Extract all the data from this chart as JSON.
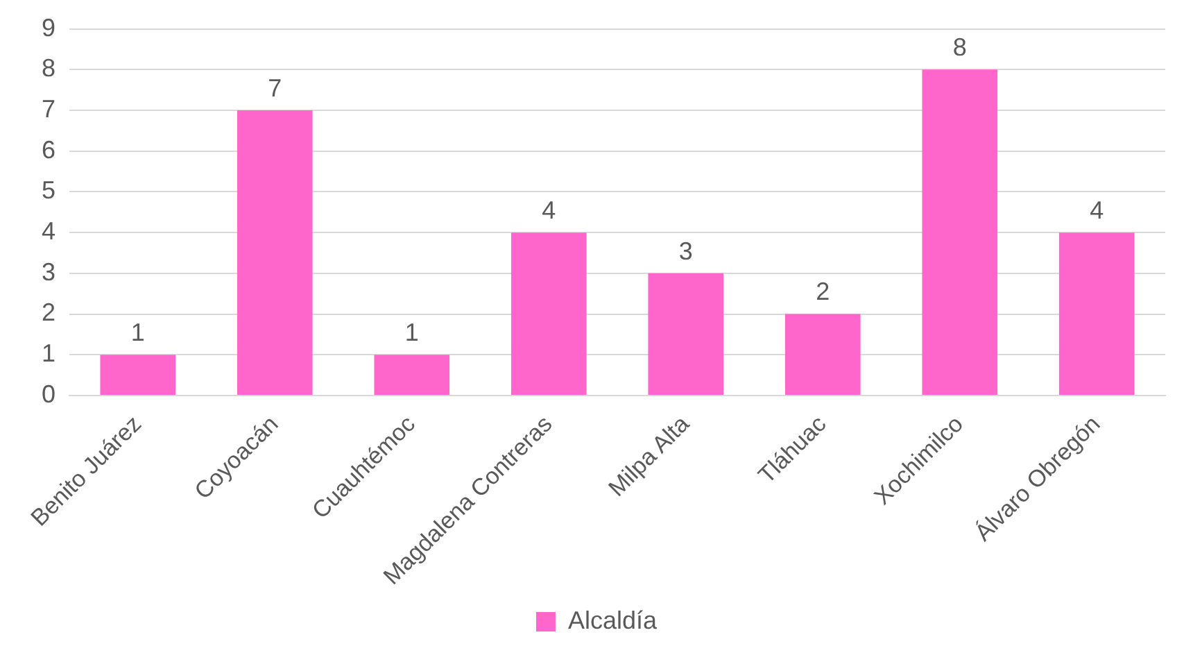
{
  "chart_data": {
    "type": "bar",
    "categories": [
      "Benito Juárez",
      "Coyoacán",
      "Cuauhtémoc",
      "Magdalena Contreras",
      "Milpa Alta",
      "Tláhuac",
      "Xochimilco",
      "Álvaro Obregón"
    ],
    "series": [
      {
        "name": "Alcaldía",
        "color": "#ff66cc",
        "values": [
          1,
          7,
          1,
          4,
          3,
          2,
          8,
          4
        ]
      }
    ],
    "ylim": [
      0,
      9
    ],
    "yticks": [
      0,
      1,
      2,
      3,
      4,
      5,
      6,
      7,
      8,
      9
    ],
    "grid": "y",
    "legend": "bottom",
    "data_labels": true
  }
}
